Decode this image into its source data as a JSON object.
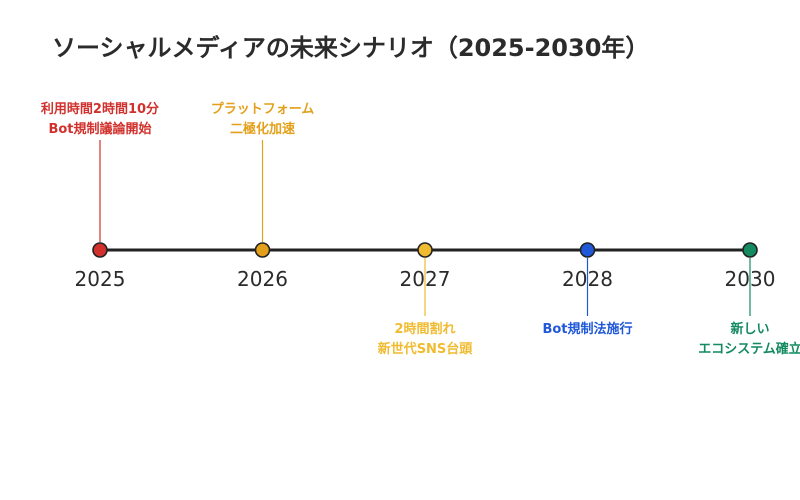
{
  "page": {
    "title": "ソーシャルメディアの未来シナリオ（2025-2030年）"
  },
  "timeline": {
    "events": [
      {
        "year": "2025",
        "color": "#d0312d",
        "position": "above",
        "lines": [
          "利用時間2時間10分",
          "Bot規制議論開始"
        ]
      },
      {
        "year": "2026",
        "color": "#e3a01a",
        "position": "above",
        "lines": [
          "プラットフォーム",
          "二極化加速"
        ]
      },
      {
        "year": "2027",
        "color": "#f0bb30",
        "position": "below",
        "lines": [
          "2時間割れ",
          "新世代SNS台頭"
        ]
      },
      {
        "year": "2028",
        "color": "#2058d8",
        "position": "below",
        "lines": [
          "Bot規制法施行"
        ]
      },
      {
        "year": "2030",
        "color": "#138a5f",
        "position": "below",
        "lines": [
          "新しい",
          "エコシステム確立"
        ]
      }
    ]
  }
}
